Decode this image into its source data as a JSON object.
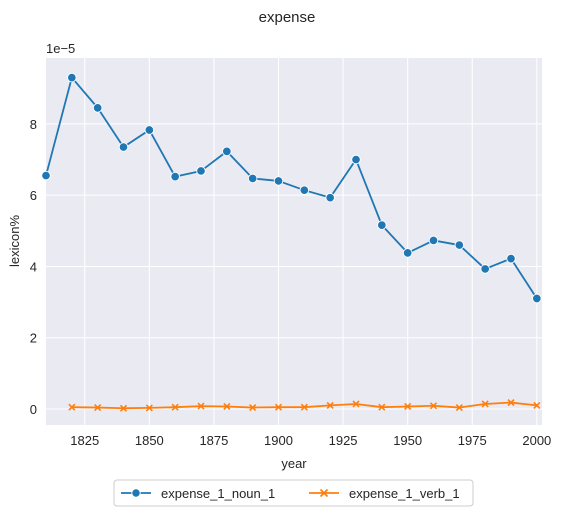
{
  "chart_data": {
    "type": "line",
    "title": "expense",
    "xlabel": "year",
    "ylabel": "lexicon%",
    "y_offset_text": "1e−5",
    "xlim": [
      1810,
      2002
    ],
    "ylim": [
      -0.45,
      9.85
    ],
    "x_ticks": [
      1825,
      1850,
      1875,
      1900,
      1925,
      1950,
      1975,
      2000
    ],
    "y_ticks": [
      0,
      2,
      4,
      6,
      8
    ],
    "grid": true,
    "legend_position": "bottom-center",
    "x": [
      1810,
      1820,
      1830,
      1840,
      1850,
      1860,
      1870,
      1880,
      1890,
      1900,
      1910,
      1920,
      1930,
      1940,
      1950,
      1960,
      1970,
      1980,
      1990,
      2000
    ],
    "series": [
      {
        "name": "expense_1_noun_1",
        "color": "#1f77b4",
        "marker": "circle",
        "x": [
          1810,
          1820,
          1830,
          1840,
          1850,
          1860,
          1870,
          1880,
          1890,
          1900,
          1910,
          1920,
          1930,
          1940,
          1950,
          1960,
          1970,
          1980,
          1990,
          2000
        ],
        "values": [
          6.55,
          9.3,
          8.45,
          7.35,
          7.83,
          6.52,
          6.68,
          7.23,
          6.47,
          6.4,
          6.14,
          5.93,
          7.0,
          5.16,
          4.38,
          4.73,
          4.6,
          3.93,
          4.22,
          3.1
        ]
      },
      {
        "name": "expense_1_verb_1",
        "color": "#ff7f0e",
        "marker": "x",
        "x": [
          1820,
          1830,
          1840,
          1850,
          1860,
          1870,
          1880,
          1890,
          1900,
          1910,
          1920,
          1930,
          1940,
          1950,
          1960,
          1970,
          1980,
          1990,
          2000
        ],
        "values": [
          0.05,
          0.04,
          0.02,
          0.03,
          0.05,
          0.08,
          0.07,
          0.04,
          0.05,
          0.05,
          0.1,
          0.14,
          0.05,
          0.07,
          0.09,
          0.04,
          0.14,
          0.18,
          0.1
        ]
      }
    ]
  }
}
